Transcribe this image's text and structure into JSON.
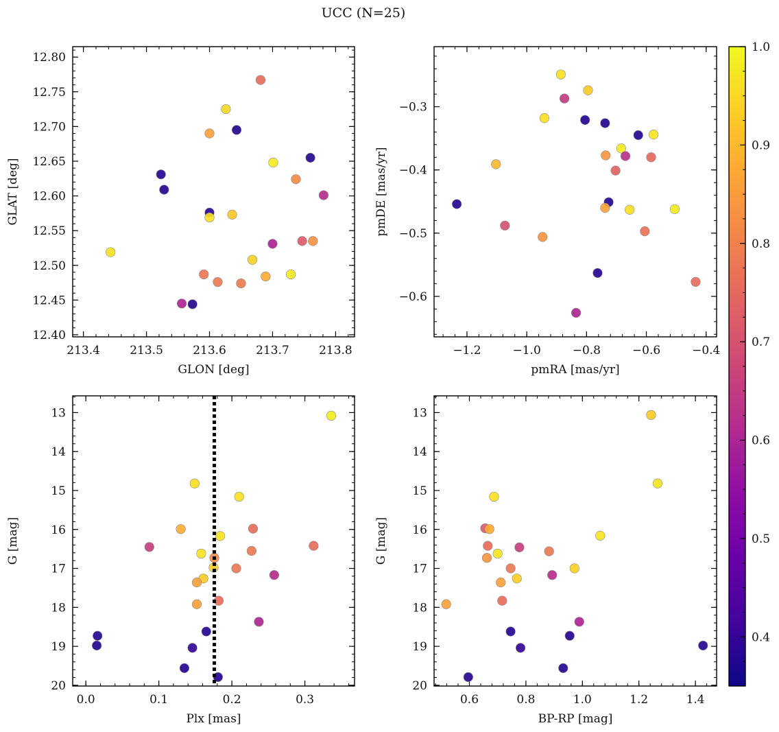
{
  "figure": {
    "title": "UCC (N=25)",
    "colorbar": {
      "min": 0.35,
      "max": 1.0,
      "ticks": [
        0.4,
        0.5,
        0.6,
        0.7,
        0.8,
        0.9,
        1.0
      ],
      "colormap": "plasma"
    }
  },
  "chart_data": [
    {
      "type": "scatter",
      "panel": "top-left",
      "xlabel": "GLON [deg]",
      "ylabel": "GLAT [deg]",
      "xlim": [
        213.383,
        213.83
      ],
      "ylim": [
        12.397,
        12.815
      ],
      "y_inverted": false,
      "xticks": [
        213.4,
        213.5,
        213.6,
        213.7,
        213.8
      ],
      "xtick_labels": [
        "213.4",
        "213.5",
        "213.6",
        "213.7",
        "213.8"
      ],
      "yticks": [
        12.4,
        12.45,
        12.5,
        12.55,
        12.6,
        12.65,
        12.7,
        12.75,
        12.8
      ],
      "ytick_labels": [
        "12.40",
        "12.45",
        "12.50",
        "12.55",
        "12.60",
        "12.65",
        "12.70",
        "12.75",
        "12.80"
      ],
      "points": [
        {
          "x": 213.681,
          "y": 12.767,
          "c": 0.76
        },
        {
          "x": 213.626,
          "y": 12.725,
          "c": 0.95
        },
        {
          "x": 213.6,
          "y": 12.69,
          "c": 0.86
        },
        {
          "x": 213.643,
          "y": 12.695,
          "c": 0.38
        },
        {
          "x": 213.523,
          "y": 12.631,
          "c": 0.38
        },
        {
          "x": 213.528,
          "y": 12.609,
          "c": 0.38
        },
        {
          "x": 213.6,
          "y": 12.576,
          "c": 0.38
        },
        {
          "x": 213.6,
          "y": 12.569,
          "c": 0.96
        },
        {
          "x": 213.636,
          "y": 12.573,
          "c": 0.92
        },
        {
          "x": 213.701,
          "y": 12.648,
          "c": 0.98
        },
        {
          "x": 213.737,
          "y": 12.624,
          "c": 0.82
        },
        {
          "x": 213.76,
          "y": 12.655,
          "c": 0.38
        },
        {
          "x": 213.781,
          "y": 12.601,
          "c": 0.62
        },
        {
          "x": 213.443,
          "y": 12.519,
          "c": 0.96
        },
        {
          "x": 213.7,
          "y": 12.531,
          "c": 0.6
        },
        {
          "x": 213.747,
          "y": 12.535,
          "c": 0.72
        },
        {
          "x": 213.764,
          "y": 12.535,
          "c": 0.83
        },
        {
          "x": 213.668,
          "y": 12.508,
          "c": 0.94
        },
        {
          "x": 213.591,
          "y": 12.487,
          "c": 0.78
        },
        {
          "x": 213.689,
          "y": 12.484,
          "c": 0.88
        },
        {
          "x": 213.729,
          "y": 12.487,
          "c": 0.98
        },
        {
          "x": 213.613,
          "y": 12.476,
          "c": 0.78
        },
        {
          "x": 213.65,
          "y": 12.474,
          "c": 0.79
        },
        {
          "x": 213.556,
          "y": 12.445,
          "c": 0.6
        },
        {
          "x": 213.573,
          "y": 12.444,
          "c": 0.38
        }
      ]
    },
    {
      "type": "scatter",
      "panel": "top-right",
      "xlabel": "pmRA [mas/yr]",
      "ylabel": "pmDE [mas/yr]",
      "xlim": [
        -1.31,
        -0.365
      ],
      "ylim": [
        -0.664,
        -0.205
      ],
      "y_inverted": false,
      "xticks": [
        -1.2,
        -1.0,
        -0.8,
        -0.6,
        -0.4
      ],
      "xtick_labels": [
        "−1.2",
        "−1.0",
        "−0.8",
        "−0.6",
        "−0.4"
      ],
      "yticks": [
        -0.6,
        -0.5,
        -0.4,
        -0.3
      ],
      "ytick_labels": [
        "−0.6",
        "−0.5",
        "−0.4",
        "−0.3"
      ],
      "points": [
        {
          "x": -0.886,
          "y": -0.249,
          "c": 0.96
        },
        {
          "x": -0.795,
          "y": -0.274,
          "c": 0.93
        },
        {
          "x": -0.874,
          "y": -0.287,
          "c": 0.65
        },
        {
          "x": -0.941,
          "y": -0.318,
          "c": 0.96
        },
        {
          "x": -0.805,
          "y": -0.321,
          "c": 0.38
        },
        {
          "x": -0.738,
          "y": -0.326,
          "c": 0.38
        },
        {
          "x": -0.627,
          "y": -0.345,
          "c": 0.38
        },
        {
          "x": -0.576,
          "y": -0.344,
          "c": 0.97
        },
        {
          "x": -0.684,
          "y": -0.366,
          "c": 0.98
        },
        {
          "x": -0.736,
          "y": -0.377,
          "c": 0.84
        },
        {
          "x": -0.67,
          "y": -0.378,
          "c": 0.63
        },
        {
          "x": -0.584,
          "y": -0.38,
          "c": 0.75
        },
        {
          "x": -1.103,
          "y": -0.391,
          "c": 0.9
        },
        {
          "x": -0.703,
          "y": -0.401,
          "c": 0.74
        },
        {
          "x": -0.726,
          "y": -0.451,
          "c": 0.38
        },
        {
          "x": -1.234,
          "y": -0.454,
          "c": 0.38
        },
        {
          "x": -0.738,
          "y": -0.46,
          "c": 0.86
        },
        {
          "x": -0.656,
          "y": -0.463,
          "c": 0.96
        },
        {
          "x": -0.505,
          "y": -0.462,
          "c": 0.98
        },
        {
          "x": -1.073,
          "y": -0.488,
          "c": 0.7
        },
        {
          "x": -0.605,
          "y": -0.497,
          "c": 0.77
        },
        {
          "x": -0.947,
          "y": -0.506,
          "c": 0.84
        },
        {
          "x": -0.763,
          "y": -0.563,
          "c": 0.38
        },
        {
          "x": -0.435,
          "y": -0.577,
          "c": 0.76
        },
        {
          "x": -0.835,
          "y": -0.626,
          "c": 0.6
        }
      ]
    },
    {
      "type": "scatter",
      "panel": "bottom-left",
      "xlabel": "Plx [mas]",
      "ylabel": "G [mag]",
      "xlim": [
        -0.018,
        0.368
      ],
      "ylim": [
        12.57,
        20.02
      ],
      "y_inverted": true,
      "xticks": [
        0.0,
        0.1,
        0.2,
        0.3
      ],
      "xtick_labels": [
        "0.0",
        "0.1",
        "0.2",
        "0.3"
      ],
      "yticks": [
        13,
        14,
        15,
        16,
        17,
        18,
        19,
        20
      ],
      "ytick_labels": [
        "13",
        "14",
        "15",
        "16",
        "17",
        "18",
        "19",
        "20"
      ],
      "vline": {
        "x": 0.176,
        "style": "dotted"
      },
      "points": [
        {
          "x": 0.336,
          "y": 13.08,
          "c": 0.98
        },
        {
          "x": 0.149,
          "y": 14.82,
          "c": 0.96
        },
        {
          "x": 0.21,
          "y": 15.16,
          "c": 0.96
        },
        {
          "x": 0.13,
          "y": 15.99,
          "c": 0.88
        },
        {
          "x": 0.229,
          "y": 15.98,
          "c": 0.76
        },
        {
          "x": 0.184,
          "y": 16.17,
          "c": 0.97
        },
        {
          "x": 0.087,
          "y": 16.45,
          "c": 0.66
        },
        {
          "x": 0.312,
          "y": 16.42,
          "c": 0.76
        },
        {
          "x": 0.227,
          "y": 16.55,
          "c": 0.78
        },
        {
          "x": 0.158,
          "y": 16.62,
          "c": 0.97
        },
        {
          "x": 0.176,
          "y": 16.73,
          "c": 0.82
        },
        {
          "x": 0.175,
          "y": 16.98,
          "c": 0.94
        },
        {
          "x": 0.206,
          "y": 17.0,
          "c": 0.78
        },
        {
          "x": 0.258,
          "y": 17.17,
          "c": 0.62
        },
        {
          "x": 0.161,
          "y": 17.26,
          "c": 0.93
        },
        {
          "x": 0.152,
          "y": 17.36,
          "c": 0.86
        },
        {
          "x": 0.182,
          "y": 17.83,
          "c": 0.76
        },
        {
          "x": 0.152,
          "y": 17.92,
          "c": 0.86
        },
        {
          "x": 0.237,
          "y": 18.37,
          "c": 0.6
        },
        {
          "x": 0.165,
          "y": 18.62,
          "c": 0.38
        },
        {
          "x": 0.016,
          "y": 18.73,
          "c": 0.38
        },
        {
          "x": 0.015,
          "y": 18.98,
          "c": 0.38
        },
        {
          "x": 0.146,
          "y": 19.04,
          "c": 0.4
        },
        {
          "x": 0.135,
          "y": 19.56,
          "c": 0.38
        },
        {
          "x": 0.181,
          "y": 19.79,
          "c": 0.38
        }
      ]
    },
    {
      "type": "scatter",
      "panel": "bottom-right",
      "xlabel": "BP-RP [mag]",
      "ylabel": "G [mag]",
      "xlim": [
        0.475,
        1.475
      ],
      "ylim": [
        12.57,
        20.02
      ],
      "y_inverted": true,
      "xticks": [
        0.6,
        0.8,
        1.0,
        1.2,
        1.4
      ],
      "xtick_labels": [
        "0.6",
        "0.8",
        "1.0",
        "1.2",
        "1.4"
      ],
      "yticks": [
        13,
        14,
        15,
        16,
        17,
        18,
        19,
        20
      ],
      "ytick_labels": [
        "13",
        "14",
        "15",
        "16",
        "17",
        "18",
        "19",
        "20"
      ],
      "points": [
        {
          "x": 1.243,
          "y": 13.06,
          "c": 0.93
        },
        {
          "x": 1.266,
          "y": 14.82,
          "c": 0.97
        },
        {
          "x": 0.687,
          "y": 15.16,
          "c": 0.96
        },
        {
          "x": 0.656,
          "y": 15.97,
          "c": 0.72
        },
        {
          "x": 0.671,
          "y": 15.99,
          "c": 0.88
        },
        {
          "x": 1.063,
          "y": 16.16,
          "c": 0.97
        },
        {
          "x": 0.665,
          "y": 16.42,
          "c": 0.76
        },
        {
          "x": 0.777,
          "y": 16.46,
          "c": 0.66
        },
        {
          "x": 0.882,
          "y": 16.56,
          "c": 0.78
        },
        {
          "x": 0.7,
          "y": 16.62,
          "c": 0.97
        },
        {
          "x": 0.662,
          "y": 16.73,
          "c": 0.84
        },
        {
          "x": 0.746,
          "y": 17.0,
          "c": 0.78
        },
        {
          "x": 0.972,
          "y": 17.0,
          "c": 0.94
        },
        {
          "x": 0.893,
          "y": 17.17,
          "c": 0.62
        },
        {
          "x": 0.768,
          "y": 17.26,
          "c": 0.93
        },
        {
          "x": 0.711,
          "y": 17.36,
          "c": 0.86
        },
        {
          "x": 0.716,
          "y": 17.83,
          "c": 0.76
        },
        {
          "x": 0.518,
          "y": 17.92,
          "c": 0.86
        },
        {
          "x": 0.989,
          "y": 18.37,
          "c": 0.6
        },
        {
          "x": 0.746,
          "y": 18.62,
          "c": 0.38
        },
        {
          "x": 0.955,
          "y": 18.73,
          "c": 0.38
        },
        {
          "x": 1.427,
          "y": 18.98,
          "c": 0.38
        },
        {
          "x": 0.781,
          "y": 19.04,
          "c": 0.4
        },
        {
          "x": 0.932,
          "y": 19.56,
          "c": 0.38
        },
        {
          "x": 0.596,
          "y": 19.79,
          "c": 0.38
        }
      ]
    }
  ]
}
